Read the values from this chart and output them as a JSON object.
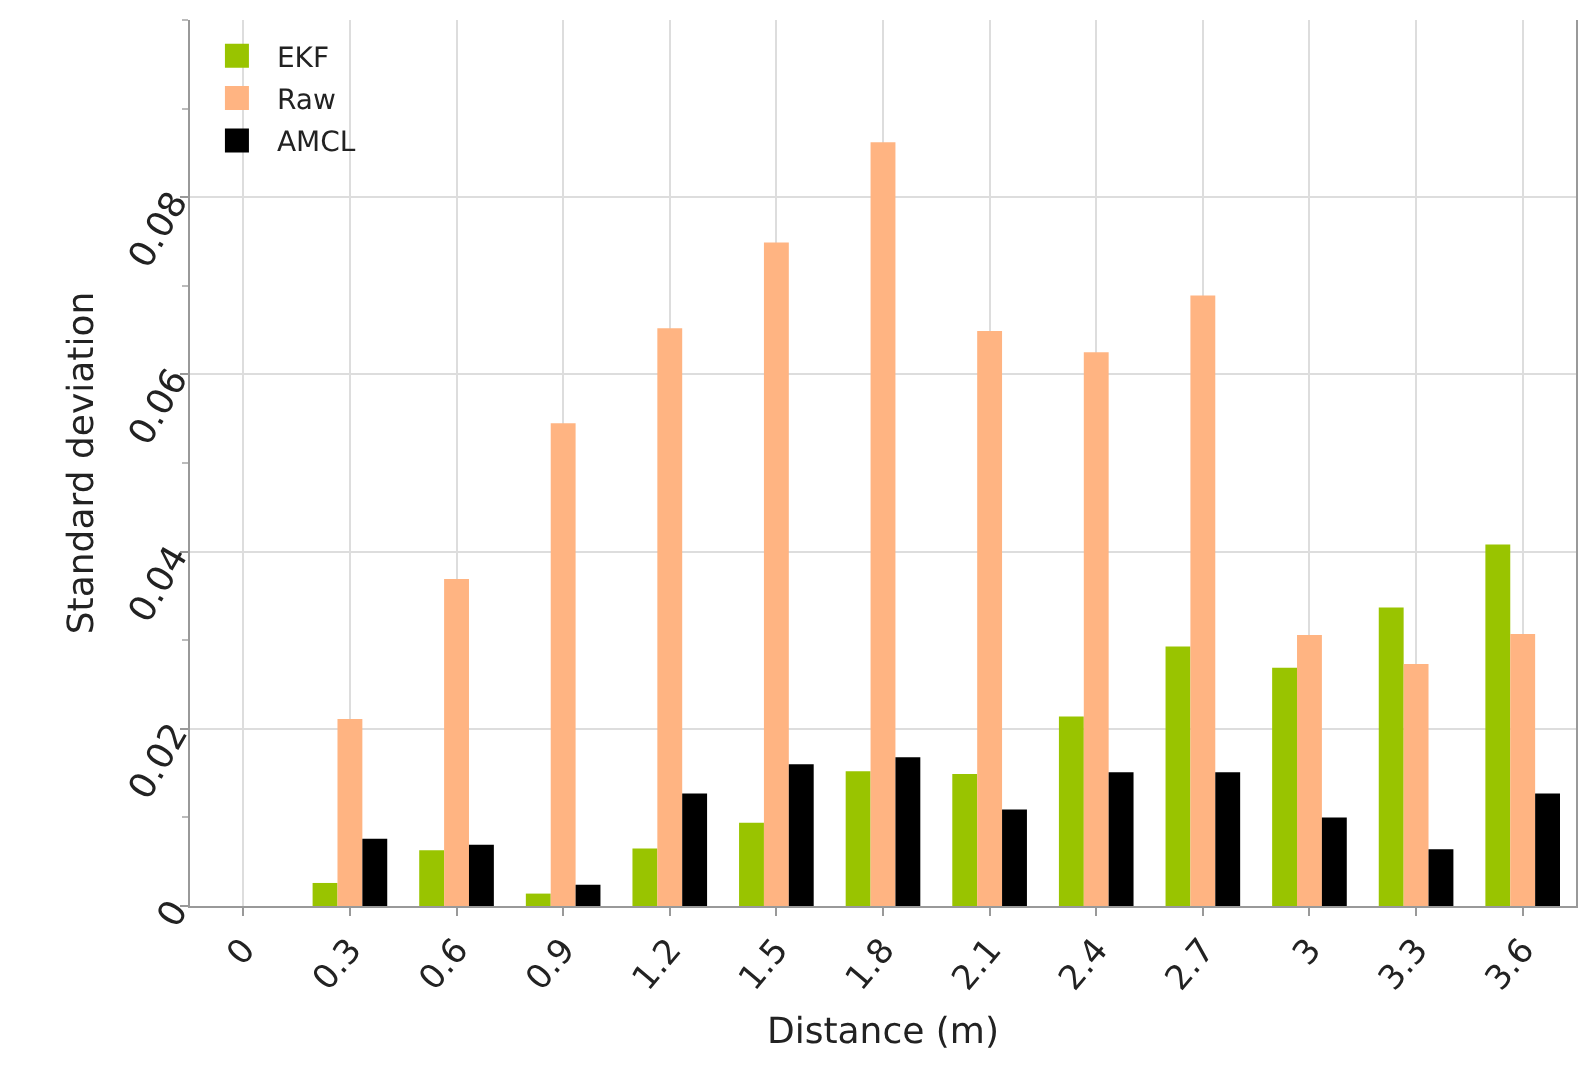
{
  "chart_data": {
    "type": "bar",
    "xlabel": "Distance (m)",
    "ylabel": "Standard deviation",
    "categories": [
      "0",
      "0.3",
      "0.6",
      "0.9",
      "1.2",
      "1.5",
      "1.8",
      "2.1",
      "2.4",
      "2.7",
      "3",
      "3.3",
      "3.6"
    ],
    "series": [
      {
        "name": "EKF",
        "color": "#99c400",
        "values": [
          null,
          0.0026,
          0.0063,
          0.0014,
          0.0065,
          0.0094,
          0.0152,
          0.0149,
          0.0214,
          0.0293,
          0.0269,
          0.0337,
          0.0408
        ]
      },
      {
        "name": "Raw",
        "color": "#ffb482",
        "values": [
          null,
          0.0211,
          0.0369,
          0.0545,
          0.0652,
          0.0749,
          0.0862,
          0.0649,
          0.0625,
          0.0689,
          0.0306,
          0.0273,
          0.0307
        ]
      },
      {
        "name": "AMCL",
        "color": "#000000",
        "values": [
          null,
          0.0076,
          0.0069,
          0.0024,
          0.0127,
          0.016,
          0.0168,
          0.0109,
          0.0151,
          0.0151,
          0.01,
          0.0064,
          0.0127
        ]
      }
    ],
    "ylim": [
      0,
      0.1
    ],
    "yticks": [
      0,
      0.02,
      0.04,
      0.06,
      0.08
    ],
    "grid": true,
    "legend": "top left"
  }
}
